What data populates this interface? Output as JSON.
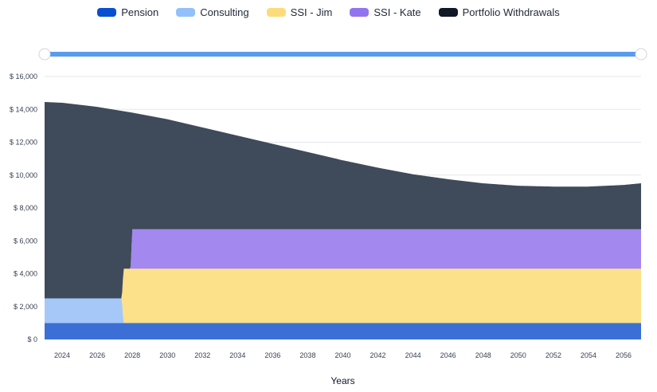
{
  "chart_data": {
    "type": "area",
    "stacked": true,
    "title": "",
    "xlabel": "Years",
    "ylabel": "",
    "xlim": [
      2023,
      2057
    ],
    "ylim": [
      0,
      16000
    ],
    "x_ticks": [
      2024,
      2026,
      2028,
      2030,
      2032,
      2034,
      2036,
      2038,
      2040,
      2042,
      2044,
      2046,
      2048,
      2050,
      2052,
      2054,
      2056
    ],
    "y_ticks": [
      0,
      2000,
      4000,
      6000,
      8000,
      10000,
      12000,
      14000,
      16000
    ],
    "y_tick_labels": [
      "$ 0",
      "$ 2,000",
      "$ 4,000",
      "$ 6,000",
      "$ 8,000",
      "$ 10,000",
      "$ 12,000",
      "$ 14,000",
      "$ 16,000"
    ],
    "legend_position": "top-center",
    "grid": true,
    "series": [
      {
        "name": "Pension",
        "color": "#3b6fd6",
        "legend_color": "#0b4fd1",
        "x": [
          2023,
          2057
        ],
        "values": [
          1000,
          1000
        ]
      },
      {
        "name": "Consulting",
        "color": "#a5c8f8",
        "legend_color": "#93c0fa",
        "x": [
          2023,
          2027.4,
          2027.5,
          2057
        ],
        "values": [
          1500,
          1500,
          0,
          0
        ]
      },
      {
        "name": "SSI - Jim",
        "color": "#fde08a",
        "legend_color": "#fcdc7a",
        "x": [
          2023,
          2027.4,
          2027.5,
          2057
        ],
        "values": [
          0,
          0,
          3300,
          3300
        ]
      },
      {
        "name": "SSI - Kate",
        "color": "#a388f0",
        "legend_color": "#9275ee",
        "x": [
          2023,
          2027.9,
          2028.0,
          2057
        ],
        "values": [
          0,
          0,
          2400,
          2400
        ]
      },
      {
        "name": "Portfolio Withdrawals",
        "color": "#3f4a5a",
        "legend_color": "#111827",
        "x_total": [
          2023,
          2024,
          2026,
          2028,
          2030,
          2032,
          2034,
          2036,
          2038,
          2040,
          2042,
          2044,
          2046,
          2048,
          2050,
          2052,
          2054,
          2056,
          2057
        ],
        "total": [
          14450,
          14400,
          14150,
          13800,
          13400,
          12900,
          12400,
          11900,
          11400,
          10900,
          10450,
          10050,
          9750,
          9500,
          9350,
          9300,
          9300,
          9400,
          9500
        ]
      }
    ],
    "range_slider": {
      "start": 2023,
      "end": 2057
    }
  }
}
